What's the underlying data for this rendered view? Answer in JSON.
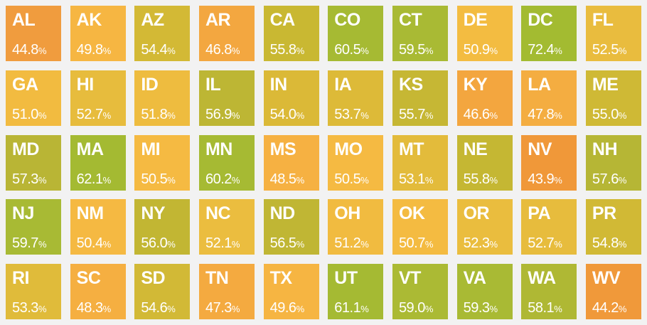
{
  "page": {
    "background_color": "#f2f2f2",
    "tile_text_color": "#ffffff"
  },
  "chart_data": {
    "type": "heatmap",
    "subtype": "state-tile-grid-map",
    "grid": {
      "rows": 5,
      "cols": 10
    },
    "value_format": "percent",
    "value_suffix": "%",
    "color_scale": {
      "low_color": "#F09839",
      "mid_color": "#F5BA42",
      "high_color": "#A4BA32",
      "note": "orange = low ~44%, yellow = ~51%, olive = ~55%, green = high >=59%"
    },
    "points": [
      {
        "abbr": "AL",
        "value": 44.8,
        "color": "#F09C3E"
      },
      {
        "abbr": "AK",
        "value": 49.8,
        "color": "#F6B642"
      },
      {
        "abbr": "AZ",
        "value": 54.4,
        "color": "#D3B935"
      },
      {
        "abbr": "AR",
        "value": 46.8,
        "color": "#F3A740"
      },
      {
        "abbr": "CA",
        "value": 55.8,
        "color": "#C9B832"
      },
      {
        "abbr": "CO",
        "value": 60.5,
        "color": "#A6BA33"
      },
      {
        "abbr": "CT",
        "value": 59.5,
        "color": "#A9BA34"
      },
      {
        "abbr": "DE",
        "value": 50.9,
        "color": "#F3BC41"
      },
      {
        "abbr": "DC",
        "value": 72.4,
        "color": "#A3BB31"
      },
      {
        "abbr": "FL",
        "value": 52.5,
        "color": "#E9BC3E"
      },
      {
        "abbr": "GA",
        "value": 51.0,
        "color": "#F2BB40"
      },
      {
        "abbr": "HI",
        "value": 52.7,
        "color": "#E7BC3D"
      },
      {
        "abbr": "ID",
        "value": 51.8,
        "color": "#EEBC3F"
      },
      {
        "abbr": "IL",
        "value": 56.9,
        "color": "#BDB634"
      },
      {
        "abbr": "IN",
        "value": 54.0,
        "color": "#DBB937"
      },
      {
        "abbr": "IA",
        "value": 53.7,
        "color": "#DDBA38"
      },
      {
        "abbr": "KS",
        "value": 55.7,
        "color": "#C6B734"
      },
      {
        "abbr": "KY",
        "value": 46.6,
        "color": "#F3A63F"
      },
      {
        "abbr": "LA",
        "value": 47.8,
        "color": "#F4AD41"
      },
      {
        "abbr": "ME",
        "value": 55.0,
        "color": "#CFB935"
      },
      {
        "abbr": "MD",
        "value": 57.3,
        "color": "#B9B535"
      },
      {
        "abbr": "MA",
        "value": 62.1,
        "color": "#A4BA32"
      },
      {
        "abbr": "MI",
        "value": 50.5,
        "color": "#F5BA42"
      },
      {
        "abbr": "MN",
        "value": 60.2,
        "color": "#A6BA33"
      },
      {
        "abbr": "MS",
        "value": 48.5,
        "color": "#F6B142"
      },
      {
        "abbr": "MO",
        "value": 50.5,
        "color": "#F5BA42"
      },
      {
        "abbr": "MT",
        "value": 53.1,
        "color": "#E3BB3B"
      },
      {
        "abbr": "NE",
        "value": 55.8,
        "color": "#C5B733"
      },
      {
        "abbr": "NV",
        "value": 43.9,
        "color": "#F09839"
      },
      {
        "abbr": "NH",
        "value": 57.6,
        "color": "#B6B635"
      },
      {
        "abbr": "NJ",
        "value": 59.7,
        "color": "#A8BA34"
      },
      {
        "abbr": "NM",
        "value": 50.4,
        "color": "#F5B942"
      },
      {
        "abbr": "NY",
        "value": 56.0,
        "color": "#C2B633"
      },
      {
        "abbr": "NC",
        "value": 52.1,
        "color": "#EBBD3F"
      },
      {
        "abbr": "ND",
        "value": 56.5,
        "color": "#C0B634"
      },
      {
        "abbr": "OH",
        "value": 51.2,
        "color": "#F1BB40"
      },
      {
        "abbr": "OK",
        "value": 50.7,
        "color": "#F4BB41"
      },
      {
        "abbr": "OR",
        "value": 52.3,
        "color": "#EABD3E"
      },
      {
        "abbr": "PA",
        "value": 52.7,
        "color": "#E7BC3D"
      },
      {
        "abbr": "PR",
        "value": 54.8,
        "color": "#D1B935"
      },
      {
        "abbr": "RI",
        "value": 53.3,
        "color": "#E0BB3A"
      },
      {
        "abbr": "SC",
        "value": 48.3,
        "color": "#F5AF41"
      },
      {
        "abbr": "SD",
        "value": 54.6,
        "color": "#D2B936"
      },
      {
        "abbr": "TN",
        "value": 47.3,
        "color": "#F4AA40"
      },
      {
        "abbr": "TX",
        "value": 49.6,
        "color": "#F6B542"
      },
      {
        "abbr": "UT",
        "value": 61.1,
        "color": "#A5BA33"
      },
      {
        "abbr": "VT",
        "value": 59.0,
        "color": "#ABBA34"
      },
      {
        "abbr": "VA",
        "value": 59.3,
        "color": "#A9BA34"
      },
      {
        "abbr": "WA",
        "value": 58.1,
        "color": "#AFB834"
      },
      {
        "abbr": "WV",
        "value": 44.2,
        "color": "#F0993A"
      }
    ]
  }
}
